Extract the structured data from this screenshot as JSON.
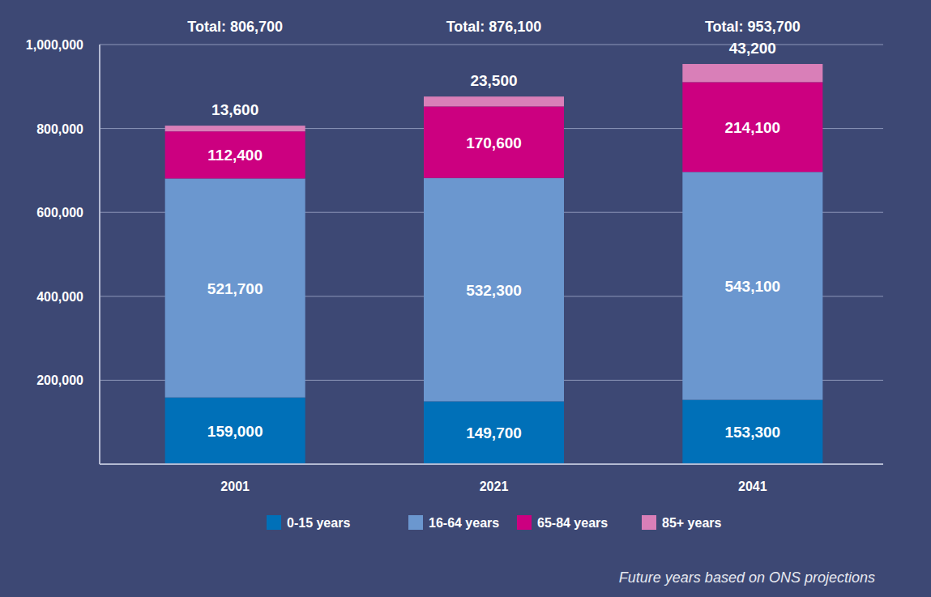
{
  "chart_data": {
    "type": "bar",
    "stacked": true,
    "data_labels": true,
    "grid": true,
    "legend": "bottom",
    "categories": [
      "2001",
      "2021",
      "2041"
    ],
    "series": [
      {
        "name": "0-15 years",
        "color": "#0070b8",
        "values": [
          159000,
          149700,
          153300
        ],
        "value_labels": [
          "159,000",
          "149,700",
          "153,300"
        ]
      },
      {
        "name": "16-64 years",
        "color": "#6b97cf",
        "values": [
          521700,
          532300,
          543100
        ],
        "value_labels": [
          "521,700",
          "532,300",
          "543,100"
        ]
      },
      {
        "name": "65-84 years",
        "color": "#cc0080",
        "values": [
          112400,
          170600,
          214100
        ],
        "value_labels": [
          "112,400",
          "170,600",
          "214,100"
        ]
      },
      {
        "name": "85+ years",
        "color": "#d97fb8",
        "values": [
          13600,
          23500,
          43200
        ],
        "value_labels": [
          "13,600",
          "23,500",
          "43,200"
        ]
      }
    ],
    "total_labels": [
      "Total: 806,700",
      "Total: 876,100",
      "Total: 953,700"
    ],
    "ylim": [
      0,
      1000000
    ],
    "yticks": [
      {
        "value": 200000,
        "label": "200,000"
      },
      {
        "value": 400000,
        "label": "400,000"
      },
      {
        "value": 600000,
        "label": "600,000"
      },
      {
        "value": 800000,
        "label": "800,000"
      },
      {
        "value": 1000000,
        "label": "1,000,000"
      }
    ],
    "note": "Future years based on ONS projections"
  }
}
